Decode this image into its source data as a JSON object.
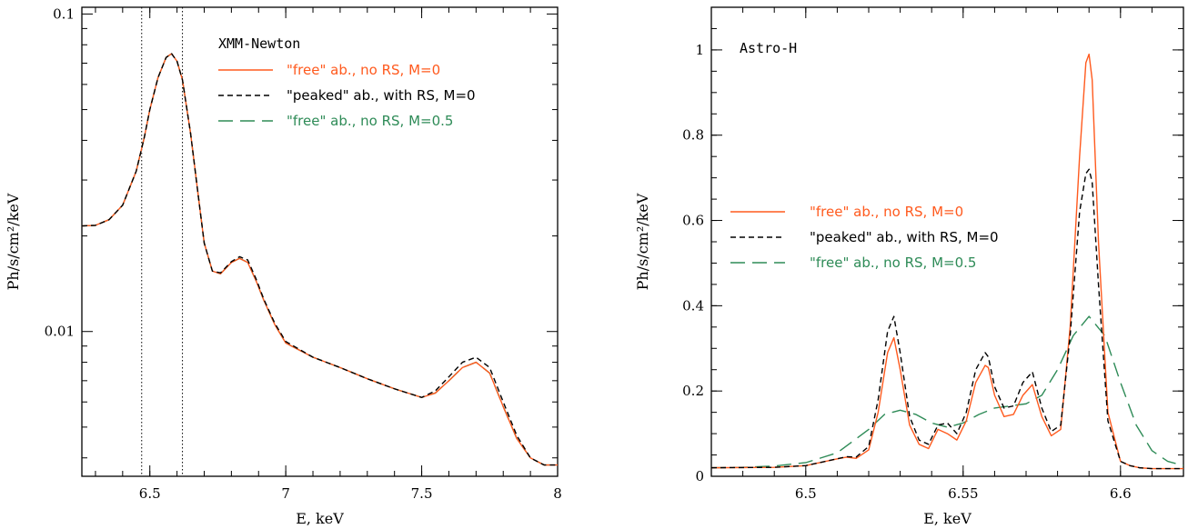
{
  "chart_data": [
    {
      "type": "line",
      "yscale": "log",
      "annotation": "XMM-Newton",
      "xlabel": "E, keV",
      "ylabel": "Ph/s/cm²/keV",
      "xlim": [
        6.25,
        8.0
      ],
      "ylim": [
        0.0035,
        0.105
      ],
      "x_ticks": [
        6.5,
        7,
        7.5,
        8
      ],
      "x_tick_labels": [
        "6.5",
        "7",
        "7.5",
        "8"
      ],
      "y_ticks": [
        0.01,
        0.1
      ],
      "y_tick_labels": [
        "0.01",
        "0.1"
      ],
      "vlines": [
        6.47,
        6.62
      ],
      "legend_location": "top-right",
      "series": [
        {
          "name": "\"free\" ab., no RS, M=0",
          "color": "#ff5a1e",
          "dash": "solid",
          "x": [
            6.25,
            6.3,
            6.35,
            6.4,
            6.45,
            6.48,
            6.5,
            6.53,
            6.56,
            6.58,
            6.6,
            6.62,
            6.65,
            6.68,
            6.7,
            6.73,
            6.76,
            6.8,
            6.83,
            6.86,
            6.89,
            6.92,
            6.96,
            7.0,
            7.1,
            7.2,
            7.3,
            7.4,
            7.5,
            7.55,
            7.6,
            7.65,
            7.7,
            7.75,
            7.8,
            7.85,
            7.9,
            7.95,
            8.0
          ],
          "y": [
            0.0215,
            0.0216,
            0.0225,
            0.025,
            0.032,
            0.041,
            0.05,
            0.063,
            0.073,
            0.075,
            0.071,
            0.062,
            0.042,
            0.026,
            0.019,
            0.0155,
            0.0152,
            0.0165,
            0.017,
            0.0165,
            0.0145,
            0.0125,
            0.0105,
            0.0092,
            0.0083,
            0.0077,
            0.0071,
            0.0066,
            0.0062,
            0.0064,
            0.007,
            0.0077,
            0.008,
            0.0074,
            0.0058,
            0.0046,
            0.004,
            0.0038,
            0.0038
          ]
        },
        {
          "name": "\"peaked\" ab., with RS, M=0",
          "color": "#000000",
          "dash": "short-dash",
          "x": [
            6.25,
            6.3,
            6.35,
            6.4,
            6.45,
            6.48,
            6.5,
            6.53,
            6.56,
            6.58,
            6.6,
            6.62,
            6.65,
            6.68,
            6.7,
            6.73,
            6.76,
            6.8,
            6.83,
            6.86,
            6.89,
            6.92,
            6.96,
            7.0,
            7.1,
            7.2,
            7.3,
            7.4,
            7.5,
            7.55,
            7.6,
            7.65,
            7.7,
            7.75,
            7.8,
            7.85,
            7.9,
            7.95,
            8.0
          ],
          "y": [
            0.0215,
            0.0216,
            0.0225,
            0.025,
            0.032,
            0.041,
            0.05,
            0.063,
            0.073,
            0.075,
            0.071,
            0.062,
            0.042,
            0.026,
            0.019,
            0.0155,
            0.0153,
            0.0166,
            0.0172,
            0.0168,
            0.0147,
            0.0126,
            0.0106,
            0.0093,
            0.0083,
            0.0077,
            0.0071,
            0.0066,
            0.0062,
            0.0065,
            0.0072,
            0.008,
            0.0083,
            0.0077,
            0.006,
            0.0047,
            0.004,
            0.0038,
            0.0038
          ]
        },
        {
          "name": "\"free\" ab., no RS, M=0.5",
          "color": "#2e8b57",
          "dash": "long-dash",
          "x": [
            6.25,
            6.3,
            6.35,
            6.4,
            6.45,
            6.48,
            6.5,
            6.53,
            6.56,
            6.58,
            6.6,
            6.62,
            6.65,
            6.68,
            6.7,
            6.73,
            6.76,
            6.8,
            6.83,
            6.86,
            6.89,
            6.92,
            6.96,
            7.0,
            7.1,
            7.2,
            7.3,
            7.4,
            7.5,
            7.55,
            7.6,
            7.65,
            7.7,
            7.75,
            7.8,
            7.85,
            7.9,
            7.95,
            8.0
          ],
          "y": [
            0.0215,
            0.0216,
            0.0225,
            0.025,
            0.032,
            0.041,
            0.05,
            0.063,
            0.073,
            0.075,
            0.071,
            0.062,
            0.042,
            0.026,
            0.019,
            0.0155,
            0.0152,
            0.0165,
            0.017,
            0.0165,
            0.0145,
            0.0125,
            0.0105,
            0.0092,
            0.0083,
            0.0077,
            0.0071,
            0.0066,
            0.0062,
            0.0064,
            0.007,
            0.0077,
            0.008,
            0.0074,
            0.0058,
            0.0046,
            0.004,
            0.0038,
            0.0038
          ]
        }
      ]
    },
    {
      "type": "line",
      "yscale": "linear",
      "annotation": "Astro-H",
      "xlabel": "E, keV",
      "ylabel": "Ph/s/cm²/keV",
      "xlim": [
        6.47,
        6.62
      ],
      "ylim": [
        0,
        1.1
      ],
      "x_ticks": [
        6.5,
        6.55,
        6.6
      ],
      "x_tick_labels": [
        "6.5",
        "6.55",
        "6.6"
      ],
      "y_ticks": [
        0,
        0.2,
        0.4,
        0.6,
        0.8,
        1
      ],
      "y_tick_labels": [
        "0",
        "0.2",
        "0.4",
        "0.6",
        "0.8",
        "1"
      ],
      "legend_location": "center-left",
      "series": [
        {
          "name": "\"free\" ab., no RS, M=0",
          "color": "#ff5a1e",
          "dash": "solid",
          "x": [
            6.47,
            6.49,
            6.5,
            6.505,
            6.51,
            6.513,
            6.516,
            6.52,
            6.523,
            6.526,
            6.528,
            6.53,
            6.533,
            6.536,
            6.539,
            6.542,
            6.545,
            6.548,
            6.551,
            6.554,
            6.557,
            6.558,
            6.56,
            6.563,
            6.566,
            6.569,
            6.572,
            6.575,
            6.578,
            6.581,
            6.584,
            6.587,
            6.589,
            6.59,
            6.591,
            6.593,
            6.596,
            6.6,
            6.603,
            6.606,
            6.61,
            6.62
          ],
          "y": [
            0.02,
            0.021,
            0.025,
            0.033,
            0.041,
            0.045,
            0.042,
            0.062,
            0.15,
            0.29,
            0.325,
            0.25,
            0.12,
            0.075,
            0.065,
            0.11,
            0.1,
            0.085,
            0.13,
            0.22,
            0.26,
            0.255,
            0.19,
            0.14,
            0.145,
            0.19,
            0.215,
            0.14,
            0.095,
            0.11,
            0.35,
            0.75,
            0.97,
            0.99,
            0.93,
            0.55,
            0.15,
            0.035,
            0.025,
            0.02,
            0.018,
            0.018
          ]
        },
        {
          "name": "\"peaked\" ab., with RS, M=0",
          "color": "#000000",
          "dash": "short-dash",
          "x": [
            6.47,
            6.49,
            6.5,
            6.505,
            6.51,
            6.513,
            6.516,
            6.52,
            6.523,
            6.526,
            6.528,
            6.53,
            6.533,
            6.536,
            6.539,
            6.542,
            6.545,
            6.548,
            6.551,
            6.554,
            6.557,
            6.558,
            6.56,
            6.563,
            6.566,
            6.569,
            6.572,
            6.575,
            6.578,
            6.581,
            6.584,
            6.587,
            6.589,
            6.59,
            6.591,
            6.593,
            6.596,
            6.6,
            6.603,
            6.606,
            6.61,
            6.62
          ],
          "y": [
            0.02,
            0.021,
            0.025,
            0.033,
            0.041,
            0.046,
            0.045,
            0.07,
            0.18,
            0.34,
            0.375,
            0.29,
            0.14,
            0.085,
            0.075,
            0.12,
            0.125,
            0.1,
            0.15,
            0.25,
            0.29,
            0.28,
            0.21,
            0.16,
            0.165,
            0.22,
            0.245,
            0.16,
            0.105,
            0.12,
            0.33,
            0.62,
            0.71,
            0.72,
            0.69,
            0.45,
            0.13,
            0.035,
            0.025,
            0.02,
            0.018,
            0.018
          ]
        },
        {
          "name": "\"free\" ab., no RS, M=0.5",
          "color": "#2e8b57",
          "dash": "long-dash",
          "x": [
            6.47,
            6.48,
            6.49,
            6.5,
            6.51,
            6.52,
            6.525,
            6.53,
            6.535,
            6.54,
            6.545,
            6.55,
            6.555,
            6.56,
            6.565,
            6.57,
            6.575,
            6.58,
            6.585,
            6.59,
            6.595,
            6.6,
            6.605,
            6.61,
            6.615,
            6.62
          ],
          "y": [
            0.02,
            0.021,
            0.024,
            0.032,
            0.055,
            0.11,
            0.145,
            0.155,
            0.145,
            0.125,
            0.115,
            0.125,
            0.145,
            0.16,
            0.165,
            0.17,
            0.19,
            0.25,
            0.33,
            0.375,
            0.33,
            0.22,
            0.12,
            0.06,
            0.035,
            0.025
          ]
        }
      ]
    }
  ]
}
